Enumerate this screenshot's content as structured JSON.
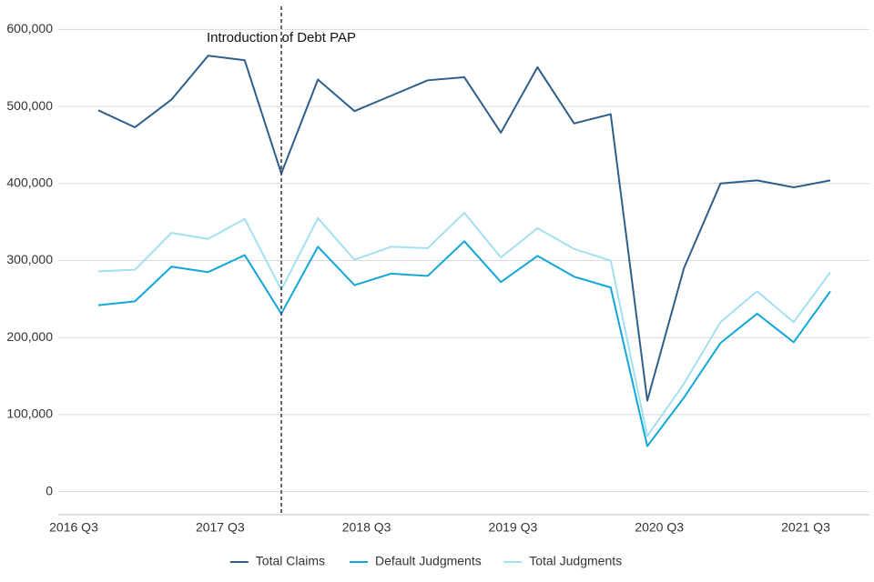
{
  "chart_data": {
    "type": "line",
    "categories": [
      "2016 Q3",
      null,
      null,
      null,
      "2017 Q3",
      null,
      null,
      null,
      "2018 Q3",
      null,
      null,
      null,
      "2019 Q3",
      null,
      null,
      null,
      "2020 Q3",
      null,
      null,
      null,
      "2021 Q3"
    ],
    "series": [
      {
        "name": "Total Claims",
        "color": "#2e5f8a",
        "values": [
          495000,
          473000,
          509000,
          566000,
          560000,
          413000,
          535000,
          494000,
          514000,
          534000,
          538000,
          466000,
          551000,
          478000,
          490000,
          118000,
          290000,
          400000,
          404000,
          395000,
          404000
        ]
      },
      {
        "name": "Default Judgments",
        "color": "#12a7d8",
        "values": [
          242000,
          247000,
          292000,
          285000,
          307000,
          231000,
          318000,
          268000,
          283000,
          280000,
          325000,
          272000,
          306000,
          279000,
          265000,
          59000,
          122000,
          193000,
          231000,
          194000,
          260000
        ]
      },
      {
        "name": "Total Judgments",
        "color": "#a3e0f1",
        "values": [
          286000,
          288000,
          336000,
          328000,
          354000,
          262000,
          355000,
          301000,
          318000,
          316000,
          362000,
          304000,
          342000,
          315000,
          300000,
          72000,
          140000,
          220000,
          260000,
          220000,
          285000
        ]
      }
    ],
    "ylim": [
      -30000,
      630000
    ],
    "yticks": [
      0,
      {
        "value": 100000,
        "label": "100,000"
      },
      {
        "value": 200000,
        "label": "200,000"
      },
      {
        "value": 300000,
        "label": "300,000"
      },
      {
        "value": 400000,
        "label": "400,000"
      },
      {
        "value": 500000,
        "label": "500,000"
      },
      {
        "value": 600000,
        "label": "600,000"
      }
    ],
    "grid": true,
    "legend": "bottom",
    "annotation": {
      "text": "Introduction of Debt PAP",
      "index": 5
    }
  }
}
